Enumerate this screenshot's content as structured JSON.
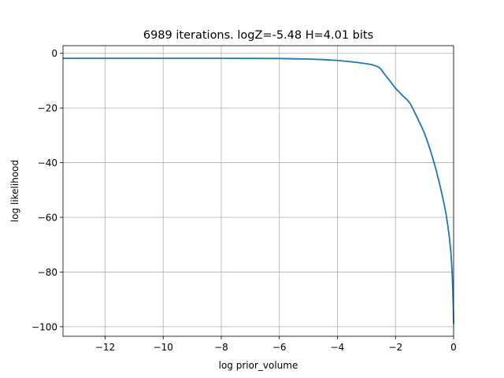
{
  "chart_data": {
    "type": "line",
    "title": "6989 iterations. logZ=-5.48 H=4.01 bits",
    "xlabel": "log prior_volume",
    "ylabel": "log likelihood",
    "xlim": [
      -13.45,
      0.0
    ],
    "ylim": [
      -103.5,
      2.8
    ],
    "grid": true,
    "x_ticks": [
      -12,
      -10,
      -8,
      -6,
      -4,
      -2,
      0
    ],
    "y_ticks": [
      0,
      -20,
      -40,
      -60,
      -80,
      -100
    ],
    "x_tick_labels": [
      "−12",
      "−10",
      "−8",
      "−6",
      "−4",
      "−2",
      "0"
    ],
    "y_tick_labels": [
      "0",
      "−20",
      "−40",
      "−60",
      "−80",
      "−100"
    ],
    "series": [
      {
        "color": "#1f77b4",
        "x": [
          -13.45,
          -12,
          -10,
          -8,
          -6,
          -5,
          -4.5,
          -4,
          -3.5,
          -3.0,
          -2.8,
          -2.6,
          -2.5,
          -2.4,
          -2.2,
          -2.0,
          -1.8,
          -1.6,
          -1.5,
          -1.4,
          -1.3,
          -1.2,
          -1.1,
          -1.0,
          -0.9,
          -0.8,
          -0.7,
          -0.6,
          -0.5,
          -0.4,
          -0.3,
          -0.25,
          -0.2,
          -0.15,
          -0.1,
          -0.07,
          -0.05,
          -0.03,
          -0.01,
          0.0
        ],
        "y": [
          -1.8,
          -1.8,
          -1.8,
          -1.8,
          -1.9,
          -2.1,
          -2.3,
          -2.6,
          -3.1,
          -3.8,
          -4.2,
          -4.9,
          -5.8,
          -7.3,
          -10.0,
          -12.8,
          -15.0,
          -17.0,
          -18.3,
          -20.3,
          -22.5,
          -24.7,
          -26.9,
          -29.3,
          -32.3,
          -35.5,
          -39.0,
          -42.8,
          -47.0,
          -51.5,
          -56.5,
          -59.5,
          -63.0,
          -67.0,
          -72.0,
          -76.5,
          -80.5,
          -85.5,
          -93.0,
          -99.0
        ]
      }
    ]
  }
}
